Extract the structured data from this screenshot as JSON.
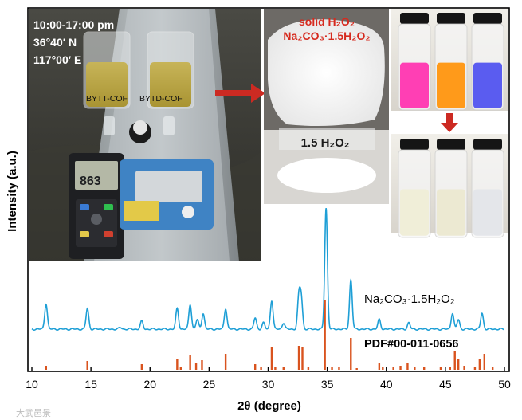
{
  "photo": {
    "time_line": "10:00-17:00 pm",
    "lat_line": "36°40′ N",
    "lon_line": "117°00′ E",
    "beaker_left_label": "BYTT-COF",
    "beaker_right_label": "BYTD-COF",
    "meter_reading": "863",
    "solid_label_1": "solid H₂O₂",
    "solid_label_2": "Na₂CO₃·1.5H₂O₂",
    "bottle_label": "1.5 H₂O₂",
    "vial_colors_before": [
      "#ff3fb4",
      "#ff9a1a",
      "#5a5cf0"
    ],
    "vial_colors_after": [
      "#f0eed8",
      "#ece9d2",
      "#e4e6ea"
    ],
    "arrow_color": "#cc2a22",
    "label_color": "#d62a1e"
  },
  "chart_data": {
    "type": "line",
    "xlabel": "2θ (degree)",
    "ylabel": "Intensity (a.u.)",
    "xlim": [
      10,
      50
    ],
    "xticks": [
      10,
      15,
      20,
      25,
      30,
      35,
      40,
      45,
      50
    ],
    "grid": false,
    "series": [
      {
        "name": "Na₂CO₃·1.5H₂O₂",
        "color": "#1e9fd6",
        "peaks": [
          {
            "x": 11.2,
            "h": 32
          },
          {
            "x": 14.7,
            "h": 26
          },
          {
            "x": 17.5,
            "h": 2
          },
          {
            "x": 19.3,
            "h": 10
          },
          {
            "x": 22.3,
            "h": 26
          },
          {
            "x": 23.4,
            "h": 31
          },
          {
            "x": 24.0,
            "h": 12
          },
          {
            "x": 24.5,
            "h": 20
          },
          {
            "x": 26.4,
            "h": 26
          },
          {
            "x": 28.9,
            "h": 14
          },
          {
            "x": 29.6,
            "h": 8
          },
          {
            "x": 30.3,
            "h": 36
          },
          {
            "x": 31.3,
            "h": 8
          },
          {
            "x": 32.6,
            "h": 40
          },
          {
            "x": 32.8,
            "h": 38
          },
          {
            "x": 34.9,
            "h": 152
          },
          {
            "x": 37.0,
            "h": 62
          },
          {
            "x": 39.4,
            "h": 12
          },
          {
            "x": 41.9,
            "h": 8
          },
          {
            "x": 45.6,
            "h": 20
          },
          {
            "x": 46.1,
            "h": 12
          },
          {
            "x": 48.1,
            "h": 20
          }
        ]
      },
      {
        "name": "PDF#00-011-0656",
        "color": "#d9531e",
        "sticks": [
          {
            "x": 11.2,
            "h": 5
          },
          {
            "x": 14.7,
            "h": 11
          },
          {
            "x": 19.3,
            "h": 7
          },
          {
            "x": 22.3,
            "h": 13
          },
          {
            "x": 22.6,
            "h": 3
          },
          {
            "x": 23.4,
            "h": 18
          },
          {
            "x": 23.9,
            "h": 8
          },
          {
            "x": 24.4,
            "h": 12
          },
          {
            "x": 26.4,
            "h": 20
          },
          {
            "x": 28.9,
            "h": 7
          },
          {
            "x": 29.4,
            "h": 4
          },
          {
            "x": 30.3,
            "h": 28
          },
          {
            "x": 30.6,
            "h": 3
          },
          {
            "x": 31.3,
            "h": 4
          },
          {
            "x": 32.6,
            "h": 30
          },
          {
            "x": 32.9,
            "h": 28
          },
          {
            "x": 33.4,
            "h": 4
          },
          {
            "x": 34.8,
            "h": 88
          },
          {
            "x": 35.4,
            "h": 3
          },
          {
            "x": 36.0,
            "h": 3
          },
          {
            "x": 37.0,
            "h": 40
          },
          {
            "x": 37.5,
            "h": 2
          },
          {
            "x": 39.4,
            "h": 9
          },
          {
            "x": 39.7,
            "h": 4
          },
          {
            "x": 40.6,
            "h": 3
          },
          {
            "x": 41.2,
            "h": 5
          },
          {
            "x": 41.8,
            "h": 8
          },
          {
            "x": 42.4,
            "h": 4
          },
          {
            "x": 43.2,
            "h": 3
          },
          {
            "x": 44.6,
            "h": 3
          },
          {
            "x": 45.4,
            "h": 4
          },
          {
            "x": 45.8,
            "h": 24
          },
          {
            "x": 46.1,
            "h": 14
          },
          {
            "x": 46.6,
            "h": 5
          },
          {
            "x": 47.5,
            "h": 4
          },
          {
            "x": 47.9,
            "h": 14
          },
          {
            "x": 48.3,
            "h": 20
          },
          {
            "x": 49.0,
            "h": 4
          }
        ]
      }
    ]
  },
  "watermark": "大武邑景"
}
